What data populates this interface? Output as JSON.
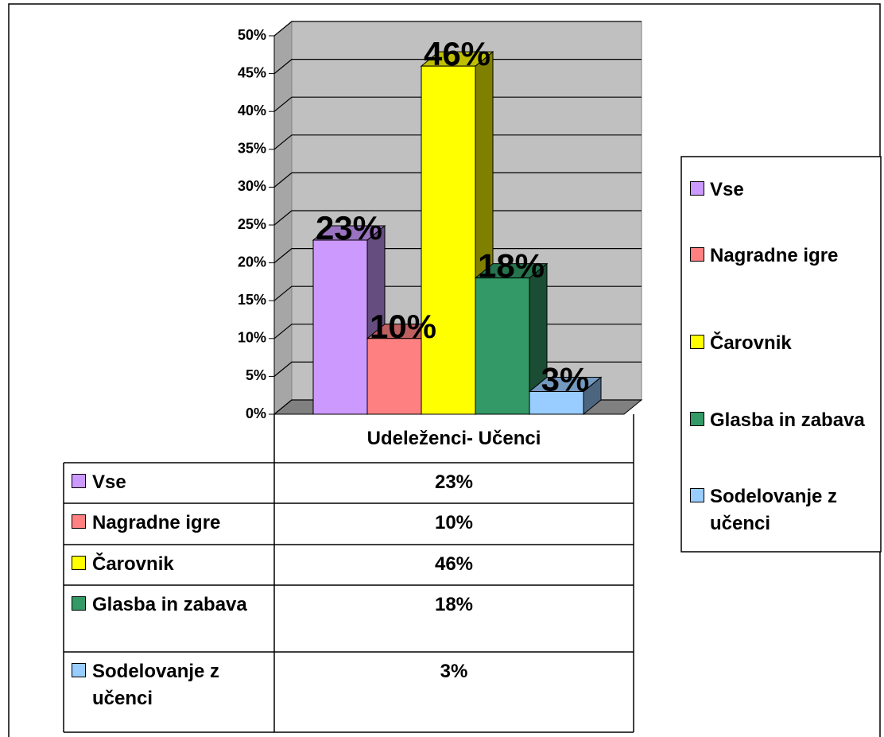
{
  "chart_data": {
    "type": "bar",
    "category": "Udeleženci- Učenci",
    "series": [
      {
        "name": "Vse",
        "color": "#cc99ff",
        "values": [
          23
        ],
        "value_labels": [
          "23%"
        ]
      },
      {
        "name": "Nagradne igre",
        "color": "#ff8080",
        "values": [
          10
        ],
        "value_labels": [
          "10%"
        ]
      },
      {
        "name": "Čarovnik",
        "color": "#ffff00",
        "values": [
          46
        ],
        "value_labels": [
          "46%"
        ]
      },
      {
        "name": "Glasba in zabava",
        "color": "#339966",
        "values": [
          18
        ],
        "value_labels": [
          "18%"
        ]
      },
      {
        "name": "Sodelovanje z učenci",
        "color": "#99ccff",
        "values": [
          3
        ],
        "value_labels": [
          "3%"
        ]
      }
    ],
    "ylim": [
      0,
      50
    ],
    "yticks": [
      {
        "value": 0,
        "label": "0%"
      },
      {
        "value": 5,
        "label": "5%"
      },
      {
        "value": 10,
        "label": "10%"
      },
      {
        "value": 15,
        "label": "15%"
      },
      {
        "value": 20,
        "label": "20%"
      },
      {
        "value": 25,
        "label": "25%"
      },
      {
        "value": 30,
        "label": "30%"
      },
      {
        "value": 35,
        "label": "35%"
      },
      {
        "value": 40,
        "label": "40%"
      },
      {
        "value": 45,
        "label": "45%"
      },
      {
        "value": 50,
        "label": "50%"
      }
    ],
    "grid": true,
    "legend": "right",
    "data_table": true
  }
}
